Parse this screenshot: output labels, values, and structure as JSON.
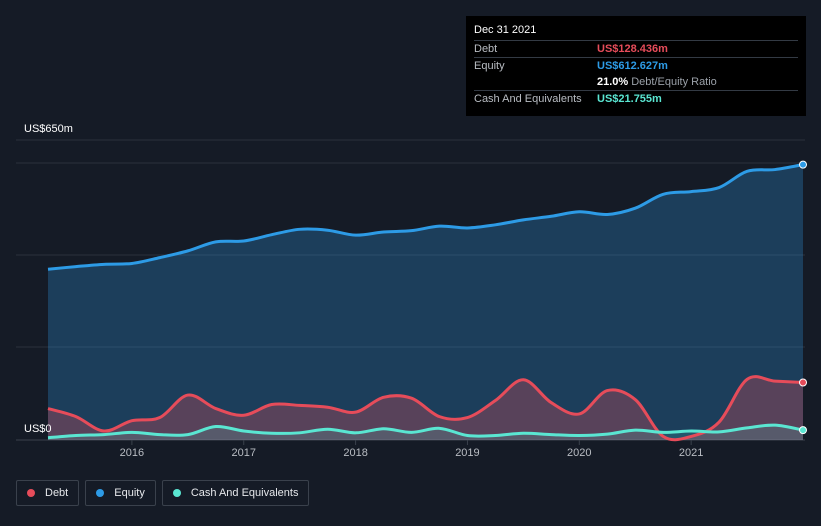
{
  "tooltip": {
    "date": "Dec 31 2021",
    "debt_label": "Debt",
    "debt_value": "US$128.436m",
    "equity_label": "Equity",
    "equity_value": "US$612.627m",
    "ratio_pct": "21.0%",
    "ratio_label": "Debt/Equity Ratio",
    "cash_label": "Cash And Equivalents",
    "cash_value": "US$21.755m"
  },
  "legend": {
    "debt": "Debt",
    "equity": "Equity",
    "cash": "Cash And Equivalents"
  },
  "colors": {
    "debt": "#e64c5a",
    "equity": "#2d9be6",
    "cash": "#5ae6d2",
    "background": "#151b26"
  },
  "chart_data": {
    "type": "area",
    "y_label_top": "US$650m",
    "y_label_bottom": "US$0",
    "ylim": [
      0,
      650
    ],
    "xlim": [
      2015.25,
      2022.0
    ],
    "x_ticks": [
      {
        "value": 2016,
        "label": "2016"
      },
      {
        "value": 2017,
        "label": "2017"
      },
      {
        "value": 2018,
        "label": "2018"
      },
      {
        "value": 2019,
        "label": "2019"
      },
      {
        "value": 2020,
        "label": "2020"
      },
      {
        "value": 2021,
        "label": "2021"
      }
    ],
    "grid": true,
    "series": [
      {
        "name": "Equity",
        "x": [
          2015.25,
          2015.5,
          2015.75,
          2016.0,
          2016.25,
          2016.5,
          2016.75,
          2017.0,
          2017.25,
          2017.5,
          2017.75,
          2018.0,
          2018.25,
          2018.5,
          2018.75,
          2019.0,
          2019.25,
          2019.5,
          2019.75,
          2020.0,
          2020.25,
          2020.5,
          2020.75,
          2021.0,
          2021.25,
          2021.5,
          2021.75,
          2022.0
        ],
        "values": [
          380,
          386,
          391,
          393,
          406,
          421,
          441,
          443,
          457,
          469,
          467,
          456,
          463,
          466,
          476,
          472,
          479,
          490,
          498,
          508,
          502,
          516,
          547,
          553,
          562,
          598,
          602,
          613
        ]
      },
      {
        "name": "Debt",
        "x": [
          2015.25,
          2015.5,
          2015.75,
          2016.0,
          2016.25,
          2016.5,
          2016.75,
          2017.0,
          2017.25,
          2017.5,
          2017.75,
          2018.0,
          2018.25,
          2018.5,
          2018.75,
          2019.0,
          2019.25,
          2019.5,
          2019.75,
          2020.0,
          2020.25,
          2020.5,
          2020.75,
          2021.0,
          2021.25,
          2021.5,
          2021.75,
          2022.0
        ],
        "values": [
          70,
          52,
          20,
          43,
          50,
          100,
          70,
          55,
          79,
          77,
          73,
          62,
          95,
          93,
          52,
          50,
          88,
          134,
          83,
          58,
          110,
          90,
          8,
          8,
          40,
          135,
          131,
          128
        ]
      },
      {
        "name": "Cash And Equivalents",
        "x": [
          2015.25,
          2015.5,
          2015.75,
          2016.0,
          2016.25,
          2016.5,
          2016.75,
          2017.0,
          2017.25,
          2017.5,
          2017.75,
          2018.0,
          2018.25,
          2018.5,
          2018.75,
          2019.0,
          2019.25,
          2019.5,
          2019.75,
          2020.0,
          2020.25,
          2020.5,
          2020.75,
          2021.0,
          2021.25,
          2021.5,
          2021.75,
          2022.0
        ],
        "values": [
          5,
          10,
          12,
          17,
          12,
          12,
          30,
          20,
          15,
          16,
          24,
          16,
          25,
          17,
          26,
          10,
          10,
          15,
          12,
          10,
          13,
          22,
          17,
          20,
          18,
          27,
          33,
          22
        ]
      }
    ]
  }
}
